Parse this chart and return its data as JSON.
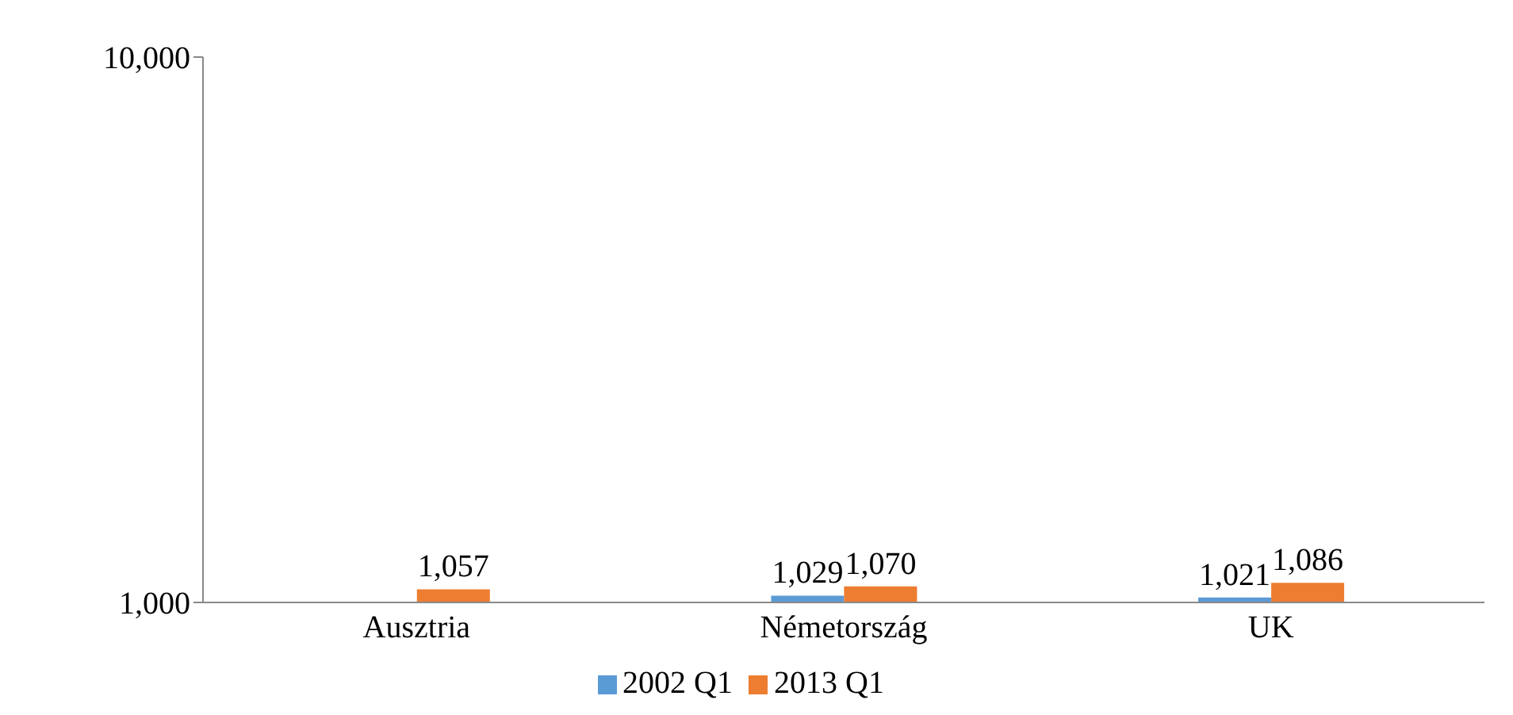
{
  "chart_data": {
    "type": "bar",
    "categories": [
      "Ausztria",
      "Németország",
      "UK"
    ],
    "series": [
      {
        "name": "2002 Q1",
        "color": "#5b9bd5",
        "values": [
          null,
          1029,
          1021
        ],
        "value_labels": [
          null,
          "1,029",
          "1,021"
        ]
      },
      {
        "name": "2013 Q1",
        "color": "#ed7d31",
        "values": [
          1057,
          1070,
          1086
        ],
        "value_labels": [
          "1,057",
          "1,070",
          "1,086"
        ]
      }
    ],
    "log": true,
    "ylim": [
      1000,
      10000
    ],
    "yticks": [
      {
        "value": 1000,
        "label": "1,000"
      },
      {
        "value": 10000,
        "label": "10,000"
      }
    ],
    "legend": "bottom"
  }
}
